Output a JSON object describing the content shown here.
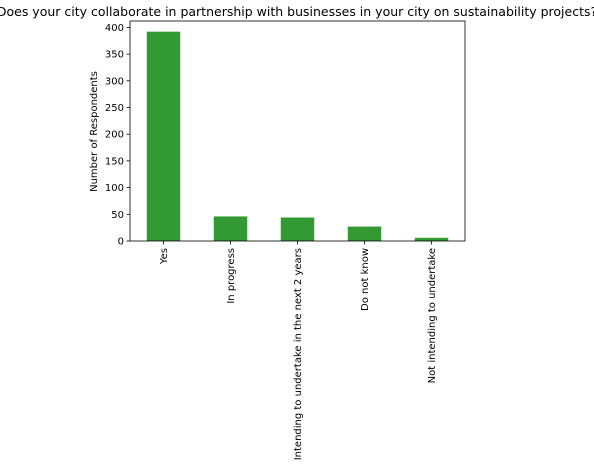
{
  "chart_data": {
    "type": "bar",
    "title": "Does your city collaborate in partnership with businesses in your city on sustainability projects?",
    "xlabel": "",
    "ylabel": "Number of Respondents",
    "categories": [
      "Yes",
      "In progress",
      "Intending to undertake in the next 2 years",
      "Do not know",
      "Not intending to undertake"
    ],
    "values": [
      392,
      46,
      44,
      27,
      6
    ],
    "ylim": [
      0,
      412
    ],
    "yticks": [
      0,
      50,
      100,
      150,
      200,
      250,
      300,
      350,
      400
    ],
    "bar_color": "#339933",
    "grid": false,
    "legend": "none"
  }
}
